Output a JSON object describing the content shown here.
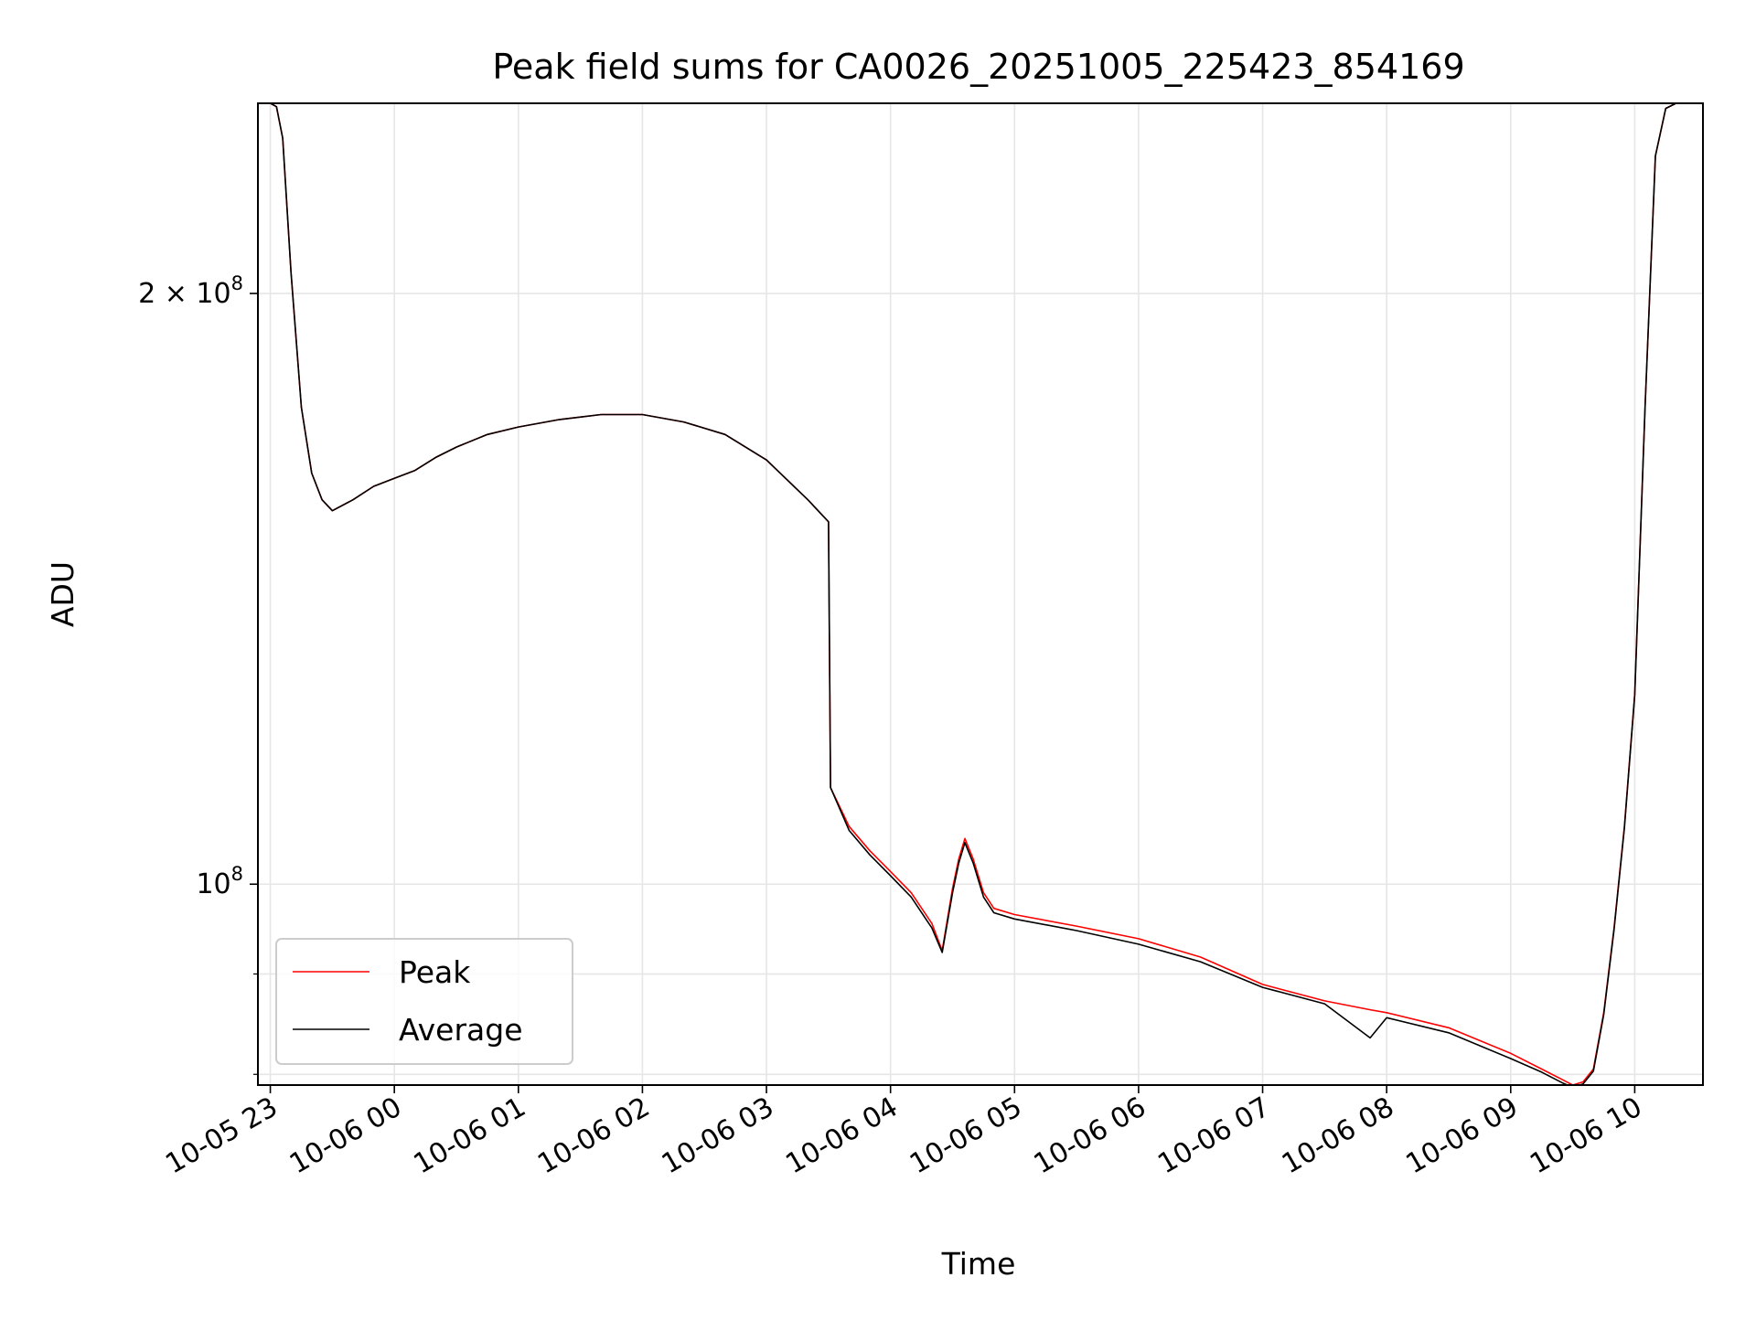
{
  "chart_data": {
    "type": "line",
    "title": "Peak field sums for CA0026_20251005_225423_854169",
    "xlabel": "Time",
    "ylabel": "ADU",
    "y_scale": "log",
    "ylim": [
      79000000,
      250000000
    ],
    "xlim": [
      "2025-10-05T22:54",
      "2025-10-06T10:33"
    ],
    "grid": true,
    "legend_position": "lower-left",
    "x_ticks": [
      {
        "t": "2025-10-05T23:00",
        "label": "10-05 23"
      },
      {
        "t": "2025-10-06T00:00",
        "label": "10-06 00"
      },
      {
        "t": "2025-10-06T01:00",
        "label": "10-06 01"
      },
      {
        "t": "2025-10-06T02:00",
        "label": "10-06 02"
      },
      {
        "t": "2025-10-06T03:00",
        "label": "10-06 03"
      },
      {
        "t": "2025-10-06T04:00",
        "label": "10-06 04"
      },
      {
        "t": "2025-10-06T05:00",
        "label": "10-06 05"
      },
      {
        "t": "2025-10-06T06:00",
        "label": "10-06 06"
      },
      {
        "t": "2025-10-06T07:00",
        "label": "10-06 07"
      },
      {
        "t": "2025-10-06T08:00",
        "label": "10-06 08"
      },
      {
        "t": "2025-10-06T09:00",
        "label": "10-06 09"
      },
      {
        "t": "2025-10-06T10:00",
        "label": "10-06 10"
      }
    ],
    "y_major_ticks": [
      {
        "value": 100000000,
        "label": "10",
        "exp": "8",
        "prefix": ""
      },
      {
        "value": 200000000,
        "label": "2 × 10",
        "exp": "8",
        "prefix": "2"
      }
    ],
    "y_minor_ticks": [
      80000000,
      90000000
    ],
    "series": [
      {
        "name": "Peak",
        "color": "#ff0000",
        "x": [
          "2025-10-05T22:54",
          "2025-10-05T23:00",
          "2025-10-05T23:03",
          "2025-10-05T23:06",
          "2025-10-05T23:10",
          "2025-10-05T23:15",
          "2025-10-05T23:20",
          "2025-10-05T23:25",
          "2025-10-05T23:30",
          "2025-10-05T23:40",
          "2025-10-05T23:50",
          "2025-10-06T00:00",
          "2025-10-06T00:10",
          "2025-10-06T00:20",
          "2025-10-06T00:30",
          "2025-10-06T00:45",
          "2025-10-06T01:00",
          "2025-10-06T01:20",
          "2025-10-06T01:40",
          "2025-10-06T02:00",
          "2025-10-06T02:20",
          "2025-10-06T02:40",
          "2025-10-06T03:00",
          "2025-10-06T03:20",
          "2025-10-06T03:30",
          "2025-10-06T03:31",
          "2025-10-06T03:40",
          "2025-10-06T03:50",
          "2025-10-06T04:00",
          "2025-10-06T04:10",
          "2025-10-06T04:20",
          "2025-10-06T04:25",
          "2025-10-06T04:30",
          "2025-10-06T04:33",
          "2025-10-06T04:36",
          "2025-10-06T04:40",
          "2025-10-06T04:45",
          "2025-10-06T04:50",
          "2025-10-06T05:00",
          "2025-10-06T05:30",
          "2025-10-06T06:00",
          "2025-10-06T06:30",
          "2025-10-06T07:00",
          "2025-10-06T07:30",
          "2025-10-06T07:52",
          "2025-10-06T08:00",
          "2025-10-06T08:30",
          "2025-10-06T09:00",
          "2025-10-06T09:15",
          "2025-10-06T09:25",
          "2025-10-06T09:30",
          "2025-10-06T09:35",
          "2025-10-06T09:40",
          "2025-10-06T09:45",
          "2025-10-06T09:50",
          "2025-10-06T09:55",
          "2025-10-06T10:00",
          "2025-10-06T10:05",
          "2025-10-06T10:10",
          "2025-10-06T10:15",
          "2025-10-06T10:20",
          "2025-10-06T10:33"
        ],
        "y": [
          250000000,
          250000000,
          249000000,
          240000000,
          205000000,
          175000000,
          162000000,
          157000000,
          155000000,
          157000000,
          159500000,
          161000000,
          162500000,
          165000000,
          167000000,
          169500000,
          171000000,
          172500000,
          173500000,
          173500000,
          172000000,
          169500000,
          164500000,
          157000000,
          153000000,
          112000000,
          107000000,
          104000000,
          101500000,
          99000000,
          95500000,
          92500000,
          99500000,
          103000000,
          105500000,
          103000000,
          99000000,
          97200000,
          96500000,
          95200000,
          93800000,
          91800000,
          88900000,
          87200000,
          86300000,
          86000000,
          84500000,
          82000000,
          80500000,
          79500000,
          79000000,
          79300000,
          80500000,
          86000000,
          95000000,
          107000000,
          125000000,
          175000000,
          235000000,
          248500000,
          250000000,
          250000000
        ]
      },
      {
        "name": "Average",
        "color": "#000000",
        "x": [
          "2025-10-05T22:54",
          "2025-10-05T23:00",
          "2025-10-05T23:03",
          "2025-10-05T23:06",
          "2025-10-05T23:10",
          "2025-10-05T23:15",
          "2025-10-05T23:20",
          "2025-10-05T23:25",
          "2025-10-05T23:30",
          "2025-10-05T23:40",
          "2025-10-05T23:50",
          "2025-10-06T00:00",
          "2025-10-06T00:10",
          "2025-10-06T00:20",
          "2025-10-06T00:30",
          "2025-10-06T00:45",
          "2025-10-06T01:00",
          "2025-10-06T01:20",
          "2025-10-06T01:40",
          "2025-10-06T02:00",
          "2025-10-06T02:20",
          "2025-10-06T02:40",
          "2025-10-06T03:00",
          "2025-10-06T03:20",
          "2025-10-06T03:30",
          "2025-10-06T03:31",
          "2025-10-06T03:40",
          "2025-10-06T03:50",
          "2025-10-06T04:00",
          "2025-10-06T04:10",
          "2025-10-06T04:20",
          "2025-10-06T04:25",
          "2025-10-06T04:30",
          "2025-10-06T04:33",
          "2025-10-06T04:36",
          "2025-10-06T04:40",
          "2025-10-06T04:45",
          "2025-10-06T04:50",
          "2025-10-06T05:00",
          "2025-10-06T05:30",
          "2025-10-06T06:00",
          "2025-10-06T06:30",
          "2025-10-06T07:00",
          "2025-10-06T07:30",
          "2025-10-06T07:52",
          "2025-10-06T08:00",
          "2025-10-06T08:30",
          "2025-10-06T09:00",
          "2025-10-06T09:15",
          "2025-10-06T09:25",
          "2025-10-06T09:30",
          "2025-10-06T09:35",
          "2025-10-06T09:40",
          "2025-10-06T09:45",
          "2025-10-06T09:50",
          "2025-10-06T09:55",
          "2025-10-06T10:00",
          "2025-10-06T10:05",
          "2025-10-06T10:10",
          "2025-10-06T10:15",
          "2025-10-06T10:20",
          "2025-10-06T10:33"
        ],
        "y": [
          250000000,
          250000000,
          249000000,
          240000000,
          205000000,
          175000000,
          162000000,
          157000000,
          155000000,
          157000000,
          159500000,
          161000000,
          162500000,
          165000000,
          167000000,
          169500000,
          171000000,
          172500000,
          173500000,
          173500000,
          172000000,
          169500000,
          164500000,
          157000000,
          153000000,
          112000000,
          106500000,
          103500000,
          101000000,
          98500000,
          95000000,
          92300000,
          99000000,
          102500000,
          105000000,
          102500000,
          98500000,
          96700000,
          96000000,
          94700000,
          93200000,
          91300000,
          88600000,
          86900000,
          83500000,
          85500000,
          84000000,
          81500000,
          80200000,
          79200000,
          78800000,
          79100000,
          80300000,
          85800000,
          94800000,
          106800000,
          124800000,
          175000000,
          235000000,
          248500000,
          250000000,
          250000000
        ]
      }
    ]
  }
}
